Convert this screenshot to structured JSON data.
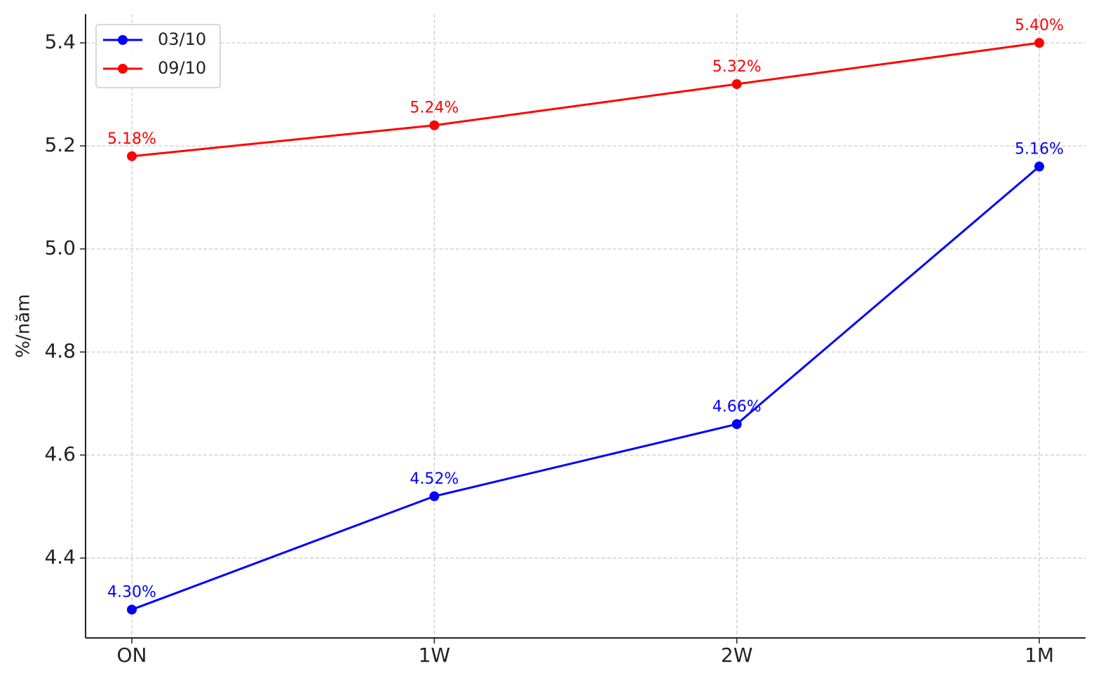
{
  "chart_data": {
    "type": "line",
    "categories": [
      "ON",
      "1W",
      "2W",
      "1M"
    ],
    "y_label": "%/năm",
    "series": [
      {
        "name": "03/10",
        "color": "#0000ff",
        "values": [
          4.3,
          4.52,
          4.66,
          5.16
        ],
        "value_labels": [
          "4.30%",
          "4.52%",
          "4.66%",
          "5.16%"
        ]
      },
      {
        "name": "09/10",
        "color": "#ff0000",
        "values": [
          5.18,
          5.24,
          5.32,
          5.4
        ],
        "value_labels": [
          "5.18%",
          "5.24%",
          "5.32%",
          "5.40%"
        ]
      }
    ],
    "ylim": [
      4.245,
      5.456
    ],
    "yticks": [
      4.4,
      4.6,
      4.8,
      {
        "value": 5,
        "label": "5.0"
      },
      5.2,
      5.4
    ],
    "grid": true,
    "legend": "upper-left"
  }
}
